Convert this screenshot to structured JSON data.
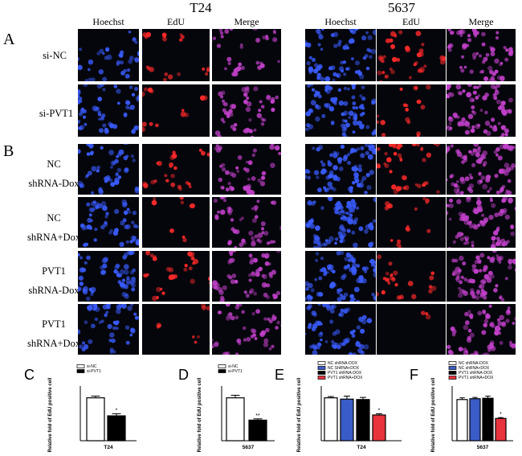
{
  "figure": {
    "cell_lines": [
      {
        "name": "T24",
        "columns": [
          "Hoechst",
          "EdU",
          "Merge"
        ]
      },
      {
        "name": "5637",
        "columns": [
          "Hoechst",
          "EdU",
          "Merge"
        ]
      }
    ],
    "panel_A": {
      "letter": "A",
      "rows": [
        {
          "line1": "si-NC",
          "line2": ""
        },
        {
          "line1": "si-PVT1",
          "line2": ""
        }
      ]
    },
    "panel_B": {
      "letter": "B",
      "rows": [
        {
          "line1": "NC",
          "line2": "shRNA-Dox"
        },
        {
          "line1": "NC",
          "line2": "shRNA+Dox"
        },
        {
          "line1": "PVT1",
          "line2": "shRNA-Dox"
        },
        {
          "line1": "PVT1",
          "line2": "shRNA+Dox"
        }
      ]
    },
    "colors": {
      "hoechst": "#3a5cff",
      "edu": "#ff2a2a",
      "merge": "#c040c8",
      "tile_bg": "#05060c",
      "bar_white": "#ffffff",
      "bar_black": "#000000",
      "bar_blue": "#3a5cc8",
      "bar_red": "#e8323c"
    }
  },
  "chart_data": [
    {
      "letter": "C",
      "type": "bar",
      "categories": [
        "T24"
      ],
      "series": [
        {
          "name": "si-NC",
          "values": [
            1.0
          ],
          "error": [
            0.04
          ],
          "color": "#ffffff"
        },
        {
          "name": "si-PVT1",
          "values": [
            0.58
          ],
          "error": [
            0.05
          ],
          "color": "#000000"
        }
      ],
      "significance": [
        "",
        "*"
      ],
      "xlabel": "T24",
      "ylabel": "Relative fold of EdU positive cell",
      "ylim": [
        0,
        1.2
      ],
      "legend": "top-left"
    },
    {
      "letter": "D",
      "type": "bar",
      "categories": [
        "5637"
      ],
      "series": [
        {
          "name": "si-NC",
          "values": [
            1.0
          ],
          "error": [
            0.06
          ],
          "color": "#ffffff"
        },
        {
          "name": "si-PVT1",
          "values": [
            0.48
          ],
          "error": [
            0.03
          ],
          "color": "#000000"
        }
      ],
      "significance": [
        "",
        "**"
      ],
      "xlabel": "5637",
      "ylabel": "Relative fold of EdU positive cell",
      "ylim": [
        0,
        1.2
      ],
      "legend": "top-left"
    },
    {
      "letter": "E",
      "type": "bar",
      "categories": [
        "T24"
      ],
      "series": [
        {
          "name": "NC shRNA-DOX",
          "values": [
            1.0
          ],
          "error": [
            0.03
          ],
          "color": "#ffffff"
        },
        {
          "name": "NC ShRNA+DOX",
          "values": [
            0.97
          ],
          "error": [
            0.07
          ],
          "color": "#3a5cc8"
        },
        {
          "name": "PVT1 shRNA-DOX",
          "values": [
            0.96
          ],
          "error": [
            0.05
          ],
          "color": "#000000"
        },
        {
          "name": "PVT1 shRNA+DOX",
          "values": [
            0.6
          ],
          "error": [
            0.03
          ],
          "color": "#e8323c"
        }
      ],
      "significance": [
        "",
        "",
        "",
        "*"
      ],
      "xlabel": "T24",
      "ylabel": "Relative fold of EdU positive cell",
      "ylim": [
        0,
        1.2
      ],
      "legend": "top-left"
    },
    {
      "letter": "F",
      "type": "bar",
      "categories": [
        "5637"
      ],
      "series": [
        {
          "name": "NC shRNA-DOX",
          "values": [
            0.96
          ],
          "error": [
            0.04
          ],
          "color": "#ffffff"
        },
        {
          "name": "NC shRNA+DOX",
          "values": [
            0.98
          ],
          "error": [
            0.03
          ],
          "color": "#3a5cc8"
        },
        {
          "name": "PVT1 shRNA-DOX",
          "values": [
            0.99
          ],
          "error": [
            0.05
          ],
          "color": "#000000"
        },
        {
          "name": "PVT1 shRNA+DOX",
          "values": [
            0.52
          ],
          "error": [
            0.02
          ],
          "color": "#e8323c"
        }
      ],
      "significance": [
        "",
        "",
        "",
        "*"
      ],
      "xlabel": "5637",
      "ylabel": "Relative fold of EdU positive cell",
      "ylim": [
        0,
        1.2
      ],
      "legend": "top-left"
    }
  ]
}
